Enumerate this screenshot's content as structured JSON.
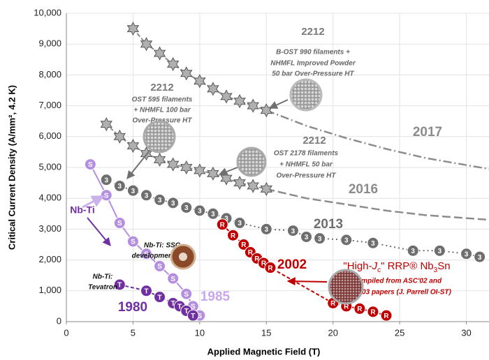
{
  "chart_data": {
    "type": "scatter",
    "x_label": "Applied Magnetic Field (T)",
    "y_label": "Critical Current Density (A/mm², 4.2 K)",
    "xlim": [
      0,
      31.7
    ],
    "ylim": [
      0,
      10000
    ],
    "xticks": [
      0,
      5,
      10,
      15,
      20,
      25,
      30
    ],
    "yticks": [
      0,
      {
        "value": 1000,
        "label": "1,000"
      },
      {
        "value": 2000,
        "label": "2,000"
      },
      {
        "value": 3000,
        "label": "3,000"
      },
      {
        "value": 4000,
        "label": "4,000"
      },
      {
        "value": 5000,
        "label": "5,000"
      },
      {
        "value": 6000,
        "label": "6,000"
      },
      {
        "value": 7000,
        "label": "7,000"
      },
      {
        "value": 8000,
        "label": "8,000"
      },
      {
        "value": 9000,
        "label": "9,000"
      },
      {
        "value": 10000,
        "label": "10,000"
      }
    ],
    "grid": true,
    "series": [
      {
        "name": "2017",
        "color": "#8c8c8c",
        "x": [
          5,
          6,
          7,
          8,
          9,
          10,
          11,
          12,
          13,
          14,
          15
        ],
        "values": [
          9500,
          9000,
          8700,
          8350,
          8050,
          7800,
          7550,
          7300,
          7150,
          7000,
          6850
        ],
        "trend_x": [
          15,
          18,
          21,
          24,
          27,
          31.7
        ],
        "trend_values": [
          6850,
          6350,
          5950,
          5600,
          5300,
          4950
        ]
      },
      {
        "name": "2016",
        "color": "#8c8c8c",
        "x": [
          3,
          4,
          5,
          6,
          7,
          8,
          9,
          10,
          11,
          12,
          13,
          14,
          15
        ],
        "values": [
          6400,
          6000,
          5700,
          5450,
          5250,
          5100,
          5000,
          4900,
          4800,
          4650,
          4500,
          4400,
          4300
        ],
        "trend_x": [
          15,
          18,
          21,
          24,
          27,
          31.7
        ],
        "trend_values": [
          4300,
          4000,
          3800,
          3600,
          3450,
          3300
        ]
      },
      {
        "name": "2013",
        "color": "#6e6e6e",
        "marker_text": "3",
        "x": [
          3,
          4,
          5,
          6,
          7,
          8,
          9,
          10,
          11,
          12,
          13,
          15,
          17,
          18,
          19,
          21,
          23,
          26,
          28,
          30,
          31
        ],
        "values": [
          4600,
          4400,
          4250,
          4100,
          3950,
          3850,
          3700,
          3600,
          3500,
          3350,
          3200,
          3000,
          2950,
          2750,
          2700,
          2650,
          2550,
          2300,
          2300,
          2200,
          2100
        ]
      },
      {
        "name": "2002",
        "color": "#c00000",
        "marker_text": "R",
        "x": [
          11.7,
          12.5,
          13.3,
          13.8,
          14.3,
          14.8,
          15.3,
          20,
          21,
          22,
          23,
          24
        ],
        "values": [
          3150,
          2800,
          2500,
          2250,
          2050,
          1900,
          1750,
          600,
          500,
          420,
          320,
          200
        ]
      },
      {
        "name": "1985",
        "color": "#b48fe0",
        "marker_text": "S",
        "x": [
          1.8,
          3,
          4,
          5,
          6,
          7,
          8,
          9,
          9.5,
          10
        ],
        "values": [
          5100,
          4100,
          3200,
          2600,
          2200,
          1800,
          1400,
          900,
          500,
          200
        ]
      },
      {
        "name": "1980",
        "color": "#7030a0",
        "marker_text": "T",
        "x": [
          4,
          6,
          7,
          8,
          8.5,
          9,
          9.5
        ],
        "values": [
          1200,
          1000,
          800,
          600,
          500,
          350,
          200
        ]
      }
    ],
    "annotations": [
      {
        "title": "2212",
        "lines": [
          "B-OST 990 filaments +",
          "NHMFL Improved Powder",
          "50 bar Over-Pressure HT"
        ]
      },
      {
        "title": "2212",
        "lines": [
          "OST 595 filaments",
          "+ NHMFL 100 bar",
          "Over-Pressure HT"
        ]
      },
      {
        "title": "2212",
        "lines": [
          "OST 2178 filaments",
          "+ NHMFL 50 bar",
          "Over-Pressure HT"
        ]
      },
      {
        "lines": [
          "Nb-Ti"
        ]
      },
      {
        "lines": [
          "Nb-Ti: SSC",
          "development 1985"
        ]
      },
      {
        "lines": [
          "Nb-Ti:",
          "Tevatron"
        ]
      },
      {
        "parts": [
          "\"High-",
          "J",
          "c",
          "\" RRP® Nb",
          "3",
          "Sn"
        ],
        "lines": [
          "Compiled from ASC'02 and",
          "ICMC'03 papers (J. Parrell OI-ST)"
        ]
      }
    ]
  }
}
